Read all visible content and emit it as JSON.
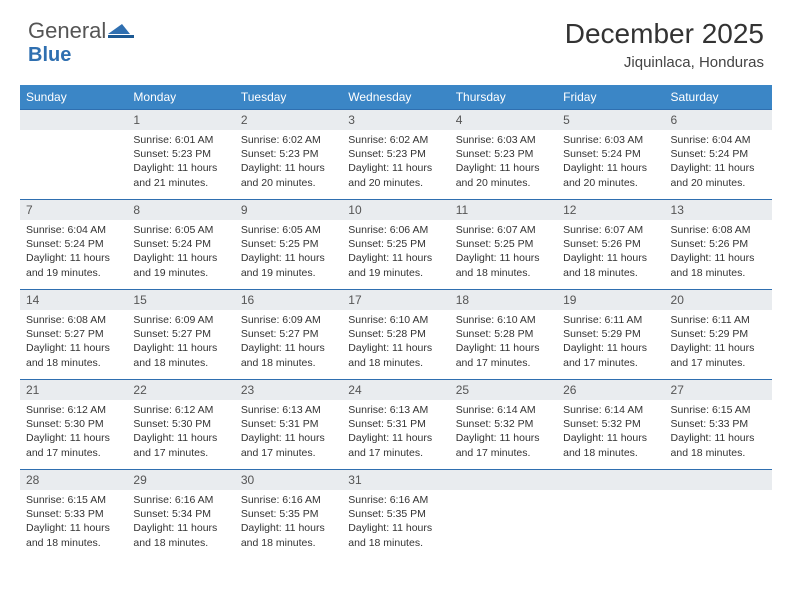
{
  "logo": {
    "text1": "General",
    "text2": "Blue"
  },
  "title": "December 2025",
  "location": "Jiquinlaca, Honduras",
  "columns": [
    "Sunday",
    "Monday",
    "Tuesday",
    "Wednesday",
    "Thursday",
    "Friday",
    "Saturday"
  ],
  "colors": {
    "header_bg": "#3b86c6",
    "header_text": "#ffffff",
    "daynum_bg": "#e9ecef",
    "row_border": "#2f6fb0",
    "logo_blue": "#2f6fb0"
  },
  "typography": {
    "title_fontsize": 28,
    "location_fontsize": 15,
    "th_fontsize": 12,
    "daynum_fontsize": 12,
    "body_fontsize": 10.5
  },
  "weeks": [
    [
      {
        "empty": true
      },
      {
        "n": "1",
        "sunrise": "6:01 AM",
        "sunset": "5:23 PM",
        "daylight": "11 hours and 21 minutes."
      },
      {
        "n": "2",
        "sunrise": "6:02 AM",
        "sunset": "5:23 PM",
        "daylight": "11 hours and 20 minutes."
      },
      {
        "n": "3",
        "sunrise": "6:02 AM",
        "sunset": "5:23 PM",
        "daylight": "11 hours and 20 minutes."
      },
      {
        "n": "4",
        "sunrise": "6:03 AM",
        "sunset": "5:23 PM",
        "daylight": "11 hours and 20 minutes."
      },
      {
        "n": "5",
        "sunrise": "6:03 AM",
        "sunset": "5:24 PM",
        "daylight": "11 hours and 20 minutes."
      },
      {
        "n": "6",
        "sunrise": "6:04 AM",
        "sunset": "5:24 PM",
        "daylight": "11 hours and 20 minutes."
      }
    ],
    [
      {
        "n": "7",
        "sunrise": "6:04 AM",
        "sunset": "5:24 PM",
        "daylight": "11 hours and 19 minutes."
      },
      {
        "n": "8",
        "sunrise": "6:05 AM",
        "sunset": "5:24 PM",
        "daylight": "11 hours and 19 minutes."
      },
      {
        "n": "9",
        "sunrise": "6:05 AM",
        "sunset": "5:25 PM",
        "daylight": "11 hours and 19 minutes."
      },
      {
        "n": "10",
        "sunrise": "6:06 AM",
        "sunset": "5:25 PM",
        "daylight": "11 hours and 19 minutes."
      },
      {
        "n": "11",
        "sunrise": "6:07 AM",
        "sunset": "5:25 PM",
        "daylight": "11 hours and 18 minutes."
      },
      {
        "n": "12",
        "sunrise": "6:07 AM",
        "sunset": "5:26 PM",
        "daylight": "11 hours and 18 minutes."
      },
      {
        "n": "13",
        "sunrise": "6:08 AM",
        "sunset": "5:26 PM",
        "daylight": "11 hours and 18 minutes."
      }
    ],
    [
      {
        "n": "14",
        "sunrise": "6:08 AM",
        "sunset": "5:27 PM",
        "daylight": "11 hours and 18 minutes."
      },
      {
        "n": "15",
        "sunrise": "6:09 AM",
        "sunset": "5:27 PM",
        "daylight": "11 hours and 18 minutes."
      },
      {
        "n": "16",
        "sunrise": "6:09 AM",
        "sunset": "5:27 PM",
        "daylight": "11 hours and 18 minutes."
      },
      {
        "n": "17",
        "sunrise": "6:10 AM",
        "sunset": "5:28 PM",
        "daylight": "11 hours and 18 minutes."
      },
      {
        "n": "18",
        "sunrise": "6:10 AM",
        "sunset": "5:28 PM",
        "daylight": "11 hours and 17 minutes."
      },
      {
        "n": "19",
        "sunrise": "6:11 AM",
        "sunset": "5:29 PM",
        "daylight": "11 hours and 17 minutes."
      },
      {
        "n": "20",
        "sunrise": "6:11 AM",
        "sunset": "5:29 PM",
        "daylight": "11 hours and 17 minutes."
      }
    ],
    [
      {
        "n": "21",
        "sunrise": "6:12 AM",
        "sunset": "5:30 PM",
        "daylight": "11 hours and 17 minutes."
      },
      {
        "n": "22",
        "sunrise": "6:12 AM",
        "sunset": "5:30 PM",
        "daylight": "11 hours and 17 minutes."
      },
      {
        "n": "23",
        "sunrise": "6:13 AM",
        "sunset": "5:31 PM",
        "daylight": "11 hours and 17 minutes."
      },
      {
        "n": "24",
        "sunrise": "6:13 AM",
        "sunset": "5:31 PM",
        "daylight": "11 hours and 17 minutes."
      },
      {
        "n": "25",
        "sunrise": "6:14 AM",
        "sunset": "5:32 PM",
        "daylight": "11 hours and 17 minutes."
      },
      {
        "n": "26",
        "sunrise": "6:14 AM",
        "sunset": "5:32 PM",
        "daylight": "11 hours and 18 minutes."
      },
      {
        "n": "27",
        "sunrise": "6:15 AM",
        "sunset": "5:33 PM",
        "daylight": "11 hours and 18 minutes."
      }
    ],
    [
      {
        "n": "28",
        "sunrise": "6:15 AM",
        "sunset": "5:33 PM",
        "daylight": "11 hours and 18 minutes."
      },
      {
        "n": "29",
        "sunrise": "6:16 AM",
        "sunset": "5:34 PM",
        "daylight": "11 hours and 18 minutes."
      },
      {
        "n": "30",
        "sunrise": "6:16 AM",
        "sunset": "5:35 PM",
        "daylight": "11 hours and 18 minutes."
      },
      {
        "n": "31",
        "sunrise": "6:16 AM",
        "sunset": "5:35 PM",
        "daylight": "11 hours and 18 minutes."
      },
      {
        "empty": true
      },
      {
        "empty": true
      },
      {
        "empty": true
      }
    ]
  ],
  "labels": {
    "sunrise": "Sunrise:",
    "sunset": "Sunset:",
    "daylight": "Daylight:"
  }
}
